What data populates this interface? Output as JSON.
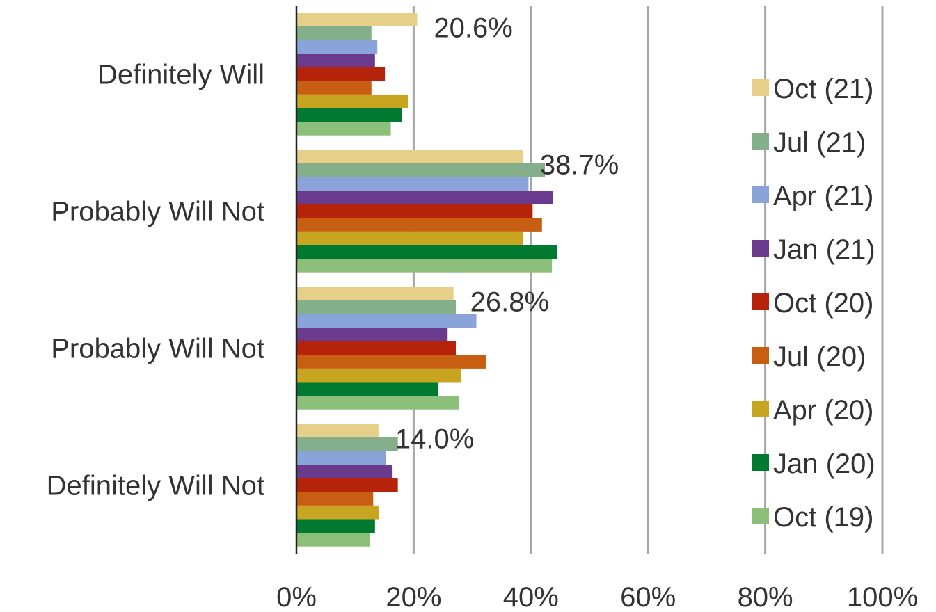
{
  "chart_data": {
    "type": "bar",
    "orientation": "horizontal",
    "categories": [
      "Definitely Will",
      "Probably Will Not",
      "Probably Will Not",
      "Definitely Will Not"
    ],
    "series": [
      {
        "name": "Oct (21)",
        "color": "#e6cf88",
        "values": [
          20.6,
          38.7,
          26.8,
          14.0
        ]
      },
      {
        "name": "Jul (21)",
        "color": "#84af8a",
        "values": [
          12.8,
          42.4,
          27.2,
          17.3
        ]
      },
      {
        "name": "Apr (21)",
        "color": "#8aa3d8",
        "values": [
          13.8,
          39.6,
          30.7,
          15.3
        ]
      },
      {
        "name": "Jan (21)",
        "color": "#6a3a8c",
        "values": [
          13.4,
          43.8,
          25.8,
          16.4
        ]
      },
      {
        "name": "Oct (20)",
        "color": "#b5230b",
        "values": [
          15.1,
          40.3,
          27.2,
          17.3
        ]
      },
      {
        "name": "Jul (20)",
        "color": "#c85e12",
        "values": [
          12.8,
          41.9,
          32.3,
          13.1
        ]
      },
      {
        "name": "Apr (20)",
        "color": "#c7a520",
        "values": [
          19.0,
          38.7,
          28.1,
          14.1
        ]
      },
      {
        "name": "Jan (20)",
        "color": "#007a30",
        "values": [
          18.0,
          44.5,
          24.2,
          13.4
        ]
      },
      {
        "name": "Oct (19)",
        "color": "#8cc07a",
        "values": [
          16.1,
          43.6,
          27.7,
          12.5
        ]
      }
    ],
    "data_labels": [
      "20.6%",
      "38.7%",
      "26.8%",
      "14.0%"
    ],
    "xlim": [
      0,
      100
    ],
    "x_ticks": [
      "0%",
      "20%",
      "40%",
      "60%",
      "80%",
      "100%"
    ],
    "grid": true,
    "legend_position": "right",
    "title": "",
    "xlabel": "",
    "ylabel": ""
  }
}
